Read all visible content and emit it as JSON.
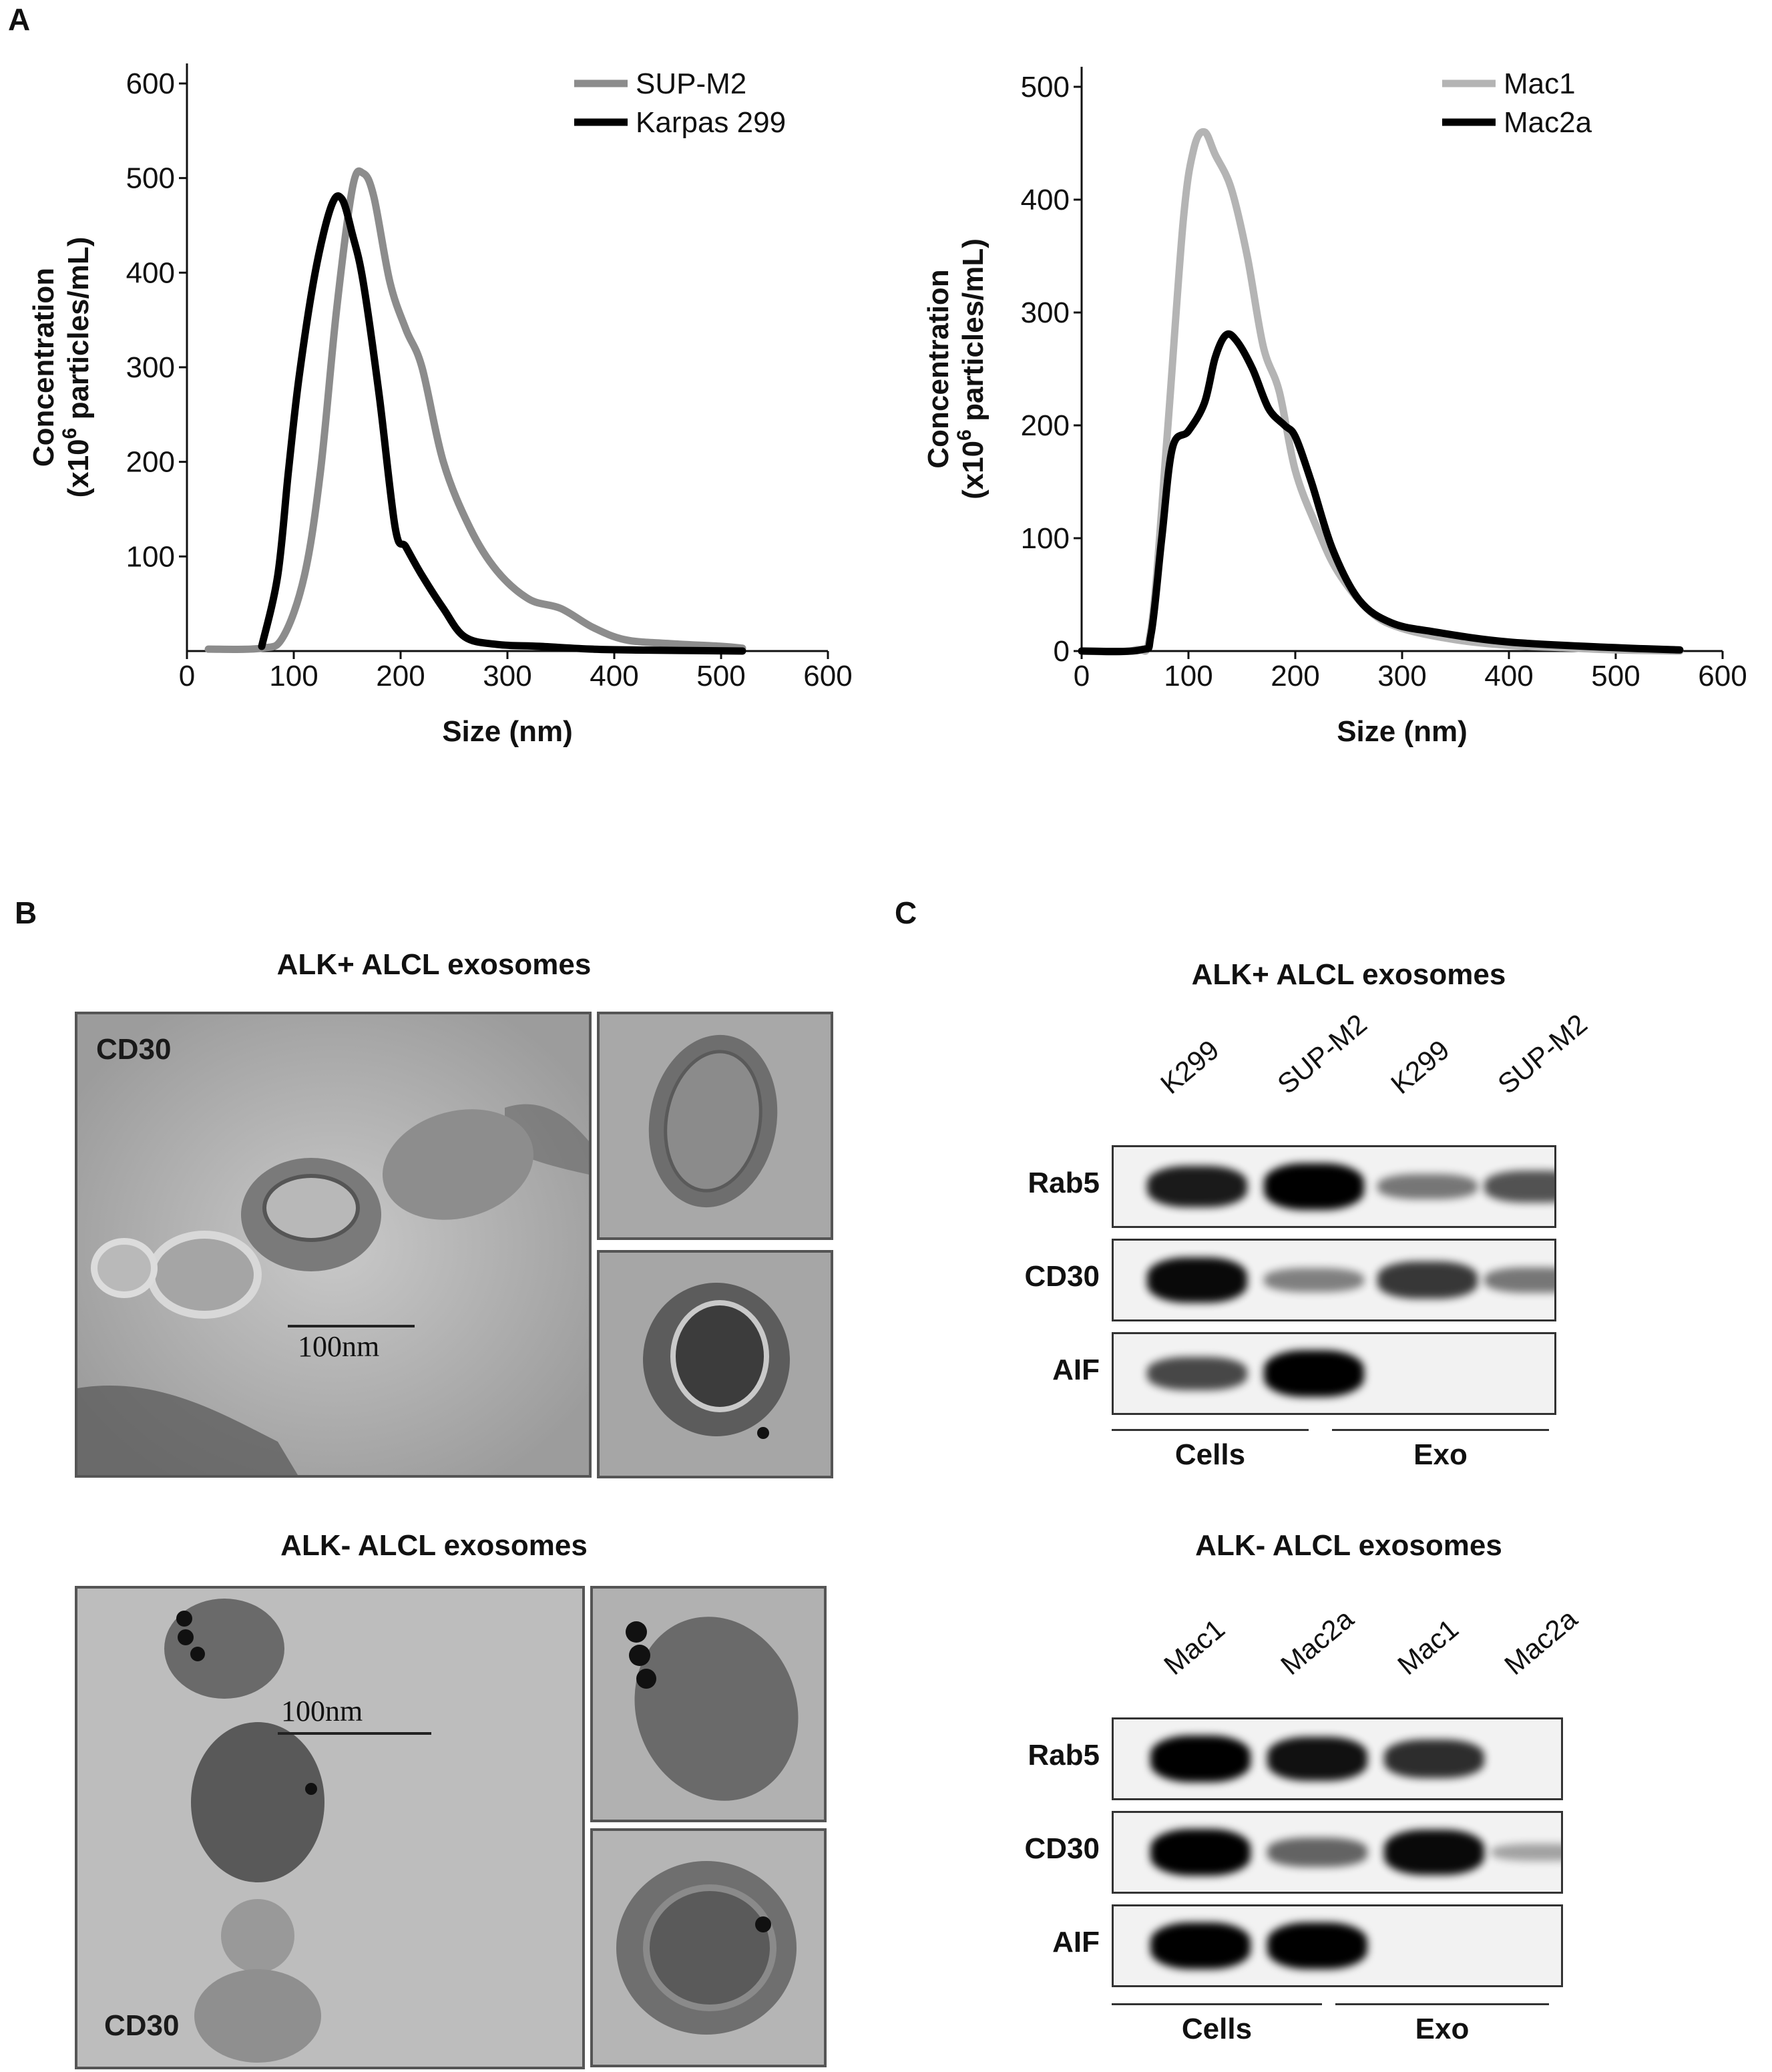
{
  "panels": {
    "a": {
      "letter": "A"
    },
    "b": {
      "letter": "B",
      "top_title": "ALK+ ALCL exosomes",
      "bottom_title": "ALK- ALCL exosomes",
      "top_marker": "CD30",
      "bottom_marker": "CD30",
      "top_scalebar": "100nm",
      "bottom_scalebar": "100nm"
    },
    "c": {
      "letter": "C",
      "top": {
        "title": "ALK+ ALCL exosomes",
        "lanes": [
          "K299",
          "SUP-M2",
          "K299",
          "SUP-M2"
        ],
        "rows": [
          "Rab5",
          "CD30",
          "AIF"
        ],
        "band_intensity": [
          [
            0.85,
            1.0,
            0.35,
            0.55
          ],
          [
            0.95,
            0.3,
            0.7,
            0.35
          ],
          [
            0.6,
            1.0,
            0.0,
            0.0
          ]
        ],
        "groups": [
          "Cells",
          "Exo"
        ]
      },
      "bottom": {
        "title": "ALK- ALCL exosomes",
        "lanes": [
          "Mac1",
          "Mac2a",
          "Mac1",
          "Mac2a"
        ],
        "rows": [
          "Rab5",
          "CD30",
          "AIF"
        ],
        "band_intensity": [
          [
            1.0,
            0.9,
            0.75,
            0.0
          ],
          [
            1.0,
            0.45,
            0.95,
            0.1
          ],
          [
            1.0,
            1.0,
            0.0,
            0.0
          ]
        ],
        "groups": [
          "Cells",
          "Exo"
        ]
      }
    }
  },
  "chart_data": [
    {
      "type": "line",
      "xlabel": "Size (nm)",
      "ylabel": [
        "Concentration",
        "(x10",
        "6",
        " particles/mL)"
      ],
      "xlim": [
        0,
        600
      ],
      "ylim": [
        0,
        600
      ],
      "xticks": [
        "0",
        "100",
        "200",
        "300",
        "400",
        "500",
        "600"
      ],
      "yticks": [
        "100",
        "200",
        "300",
        "400",
        "500",
        "600"
      ],
      "legend_position": "top-right",
      "series": [
        {
          "name": "SUP-M2",
          "color": "#8c8c8c",
          "x": [
            20,
            70,
            90,
            110,
            125,
            140,
            155,
            165,
            175,
            190,
            205,
            220,
            240,
            265,
            290,
            320,
            350,
            380,
            410,
            450,
            500,
            520
          ],
          "y": [
            2,
            3,
            15,
            80,
            190,
            360,
            490,
            505,
            480,
            390,
            340,
            300,
            200,
            130,
            85,
            55,
            45,
            25,
            12,
            8,
            5,
            3
          ]
        },
        {
          "name": "Karpas 299",
          "color": "#000000",
          "x": [
            70,
            85,
            95,
            105,
            120,
            135,
            145,
            155,
            165,
            180,
            195,
            205,
            220,
            240,
            260,
            290,
            330,
            380,
            430,
            520
          ],
          "y": [
            5,
            80,
            190,
            290,
            400,
            470,
            478,
            440,
            390,
            270,
            130,
            110,
            80,
            45,
            15,
            7,
            5,
            2,
            1,
            0
          ]
        }
      ]
    },
    {
      "type": "line",
      "xlabel": "Size (nm)",
      "ylabel": [
        "Concentration",
        "(x10",
        "6",
        " particles/mL)"
      ],
      "xlim": [
        0,
        600
      ],
      "ylim": [
        0,
        500
      ],
      "xticks": [
        "0",
        "100",
        "200",
        "300",
        "400",
        "500",
        "600"
      ],
      "yticks": [
        "0",
        "100",
        "200",
        "300",
        "400",
        "500"
      ],
      "legend_position": "top-right",
      "series": [
        {
          "name": "Mac1",
          "color": "#b4b4b4",
          "x": [
            0,
            50,
            65,
            80,
            95,
            105,
            115,
            125,
            140,
            155,
            170,
            185,
            200,
            220,
            240,
            270,
            300,
            350,
            400,
            450,
            500,
            560
          ],
          "y": [
            0,
            1,
            20,
            190,
            380,
            445,
            460,
            440,
            410,
            350,
            270,
            230,
            160,
            110,
            70,
            35,
            20,
            10,
            5,
            3,
            1,
            0
          ]
        },
        {
          "name": "Mac2a",
          "color": "#000000",
          "x": [
            0,
            55,
            65,
            75,
            85,
            100,
            115,
            125,
            135,
            145,
            160,
            175,
            190,
            200,
            215,
            235,
            260,
            290,
            330,
            400,
            500,
            560
          ],
          "y": [
            0,
            1,
            15,
            100,
            180,
            195,
            220,
            260,
            280,
            275,
            250,
            215,
            200,
            190,
            150,
            90,
            45,
            25,
            17,
            8,
            3,
            1
          ]
        }
      ]
    }
  ]
}
